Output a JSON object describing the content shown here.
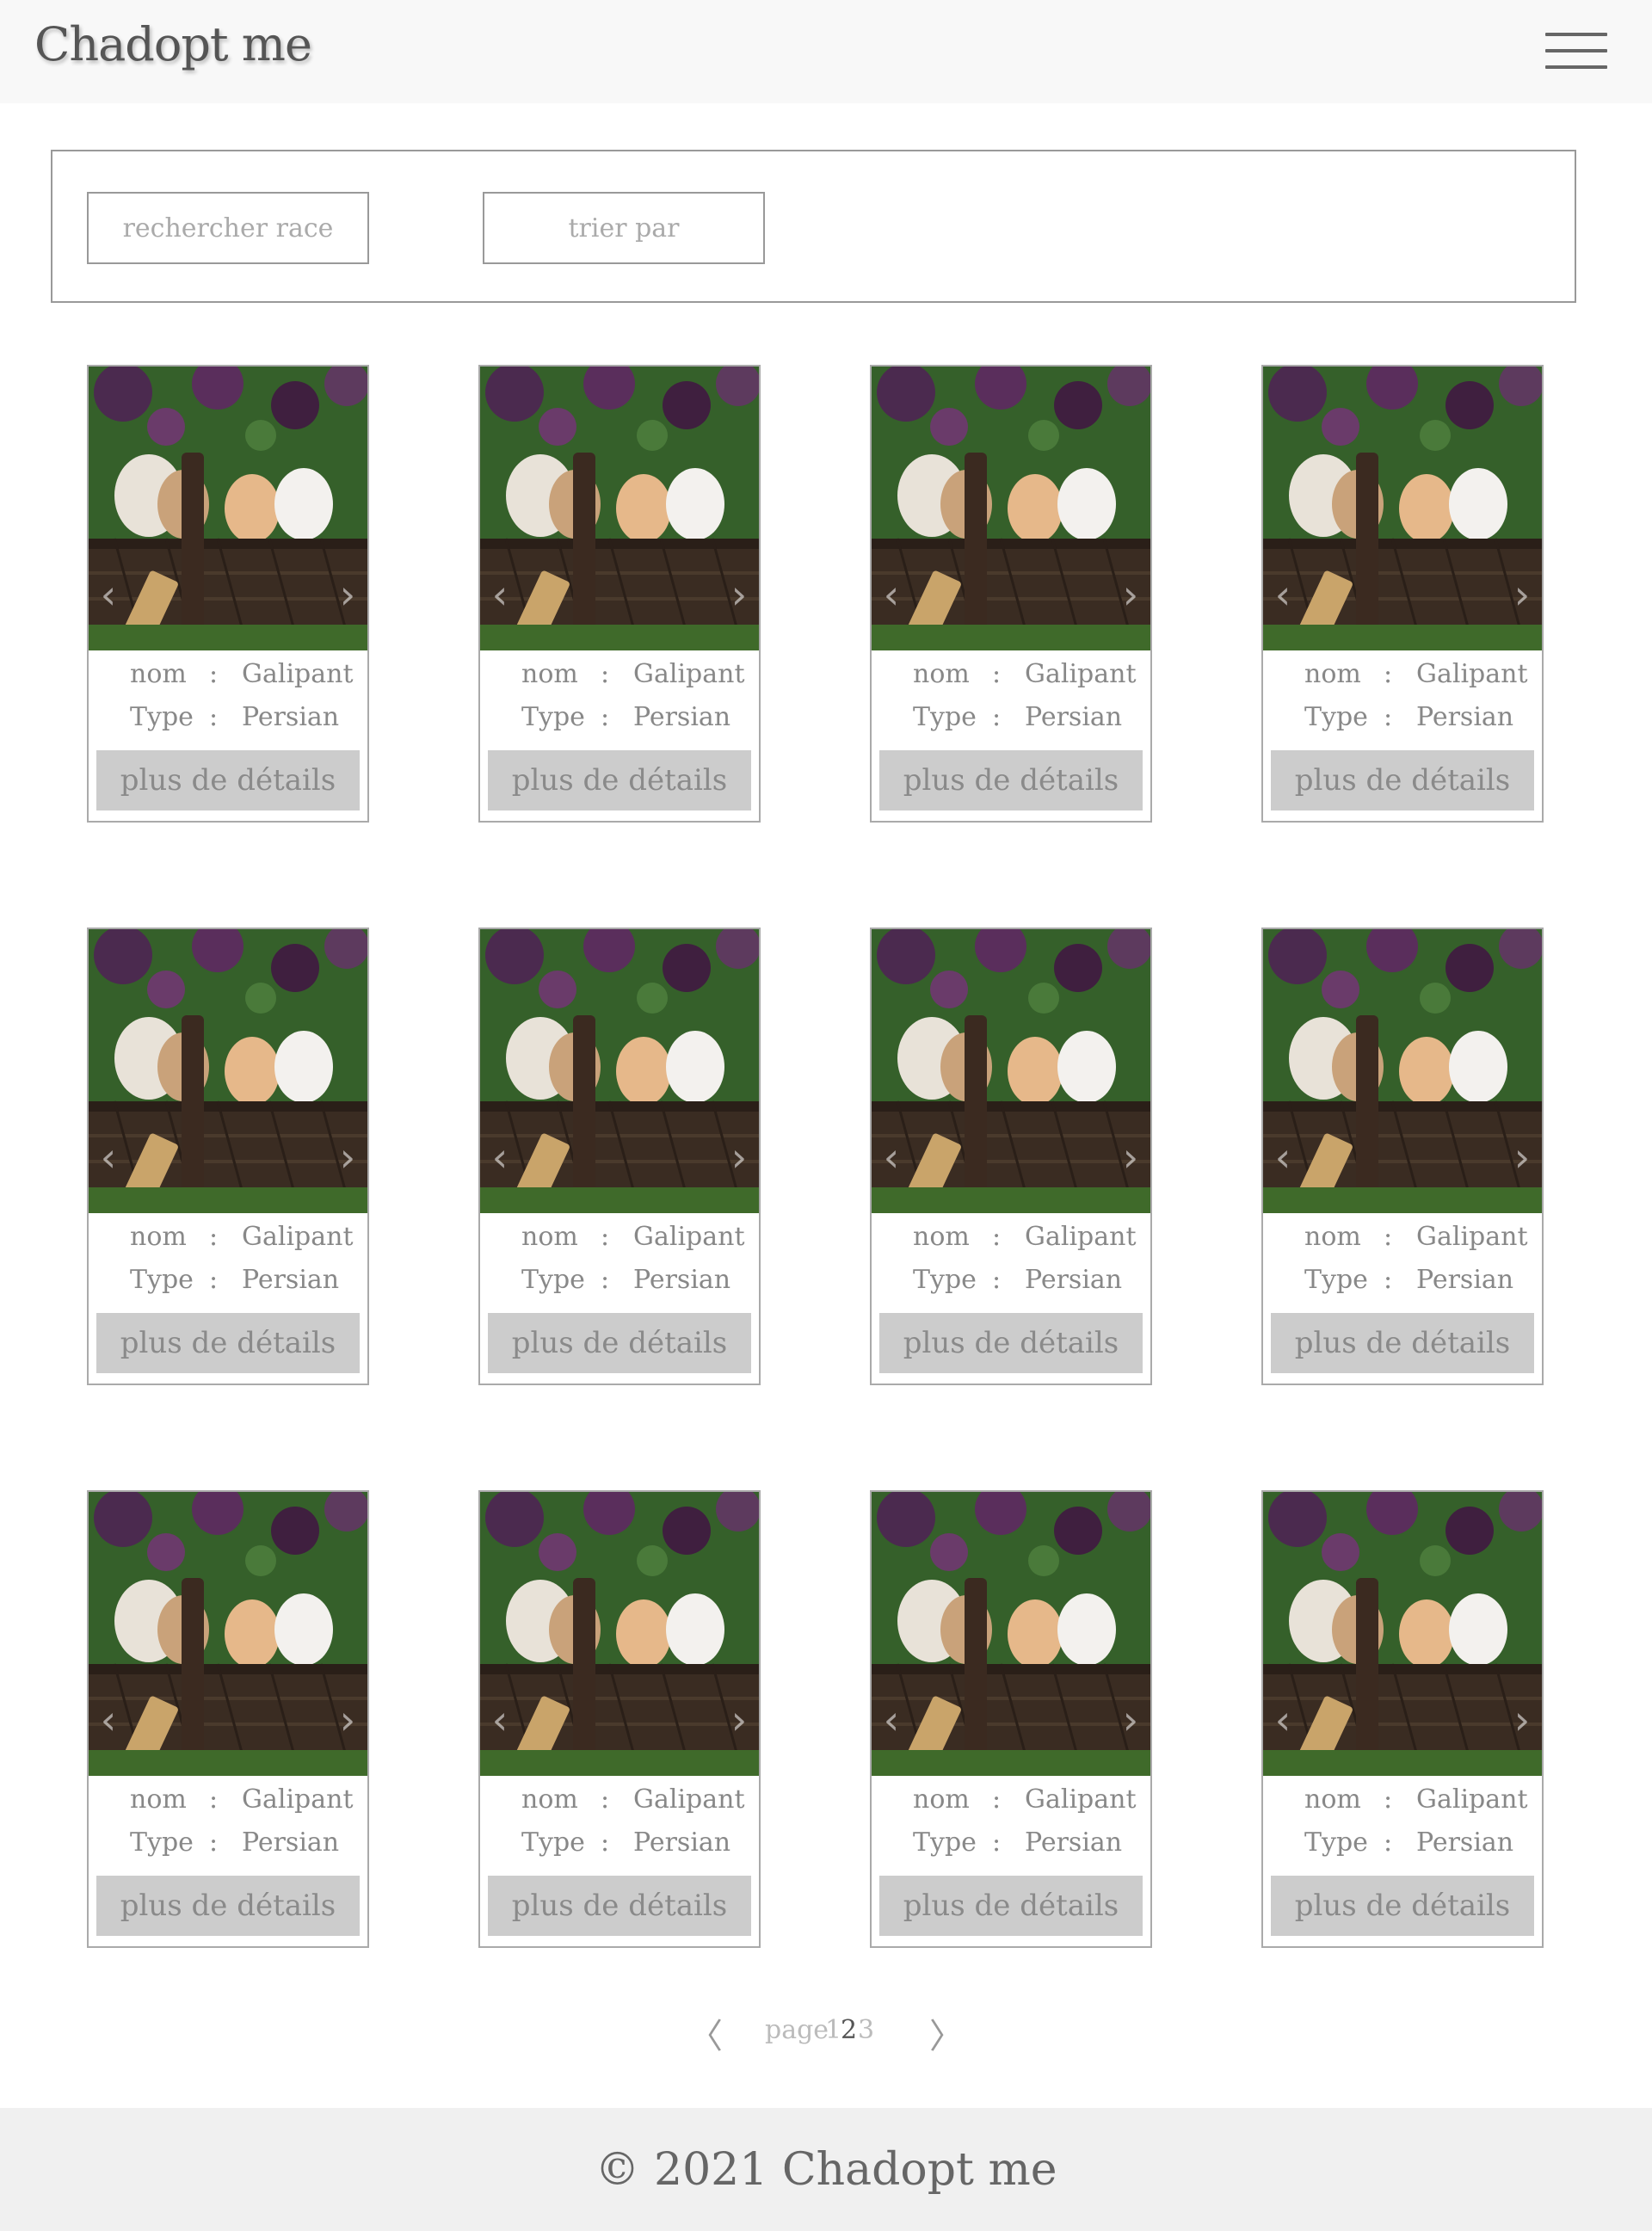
{
  "header": {
    "brand": "Chadopt me",
    "menu_icon": "hamburger-menu-icon"
  },
  "filters": {
    "search_label": "rechercher race",
    "sort_label": "trier par"
  },
  "cards": [
    {
      "nom_label": "nom",
      "nom": "Galipant",
      "type_label": "Type",
      "type": "Persian",
      "button": "plus de détails"
    },
    {
      "nom_label": "nom",
      "nom": "Galipant",
      "type_label": "Type",
      "type": "Persian",
      "button": "plus de détails"
    },
    {
      "nom_label": "nom",
      "nom": "Galipant",
      "type_label": "Type",
      "type": "Persian",
      "button": "plus de détails"
    },
    {
      "nom_label": "nom",
      "nom": "Galipant",
      "type_label": "Type",
      "type": "Persian",
      "button": "plus de détails"
    },
    {
      "nom_label": "nom",
      "nom": "Galipant",
      "type_label": "Type",
      "type": "Persian",
      "button": "plus de détails"
    },
    {
      "nom_label": "nom",
      "nom": "Galipant",
      "type_label": "Type",
      "type": "Persian",
      "button": "plus de détails"
    },
    {
      "nom_label": "nom",
      "nom": "Galipant",
      "type_label": "Type",
      "type": "Persian",
      "button": "plus de détails"
    },
    {
      "nom_label": "nom",
      "nom": "Galipant",
      "type_label": "Type",
      "type": "Persian",
      "button": "plus de détails"
    },
    {
      "nom_label": "nom",
      "nom": "Galipant",
      "type_label": "Type",
      "type": "Persian",
      "button": "plus de détails"
    },
    {
      "nom_label": "nom",
      "nom": "Galipant",
      "type_label": "Type",
      "type": "Persian",
      "button": "plus de détails"
    },
    {
      "nom_label": "nom",
      "nom": "Galipant",
      "type_label": "Type",
      "type": "Persian",
      "button": "plus de détails"
    },
    {
      "nom_label": "nom",
      "nom": "Galipant",
      "type_label": "Type",
      "type": "Persian",
      "button": "plus de détails"
    }
  ],
  "separator": ":",
  "carousel": {
    "prev_glyph": "‹",
    "next_glyph": "›"
  },
  "pagination": {
    "prev": "〈",
    "label": "page",
    "pages": [
      "1",
      "2",
      "3"
    ],
    "current": "2",
    "next": "〉"
  },
  "footer": {
    "text": "© 2021 Chadopt me"
  }
}
